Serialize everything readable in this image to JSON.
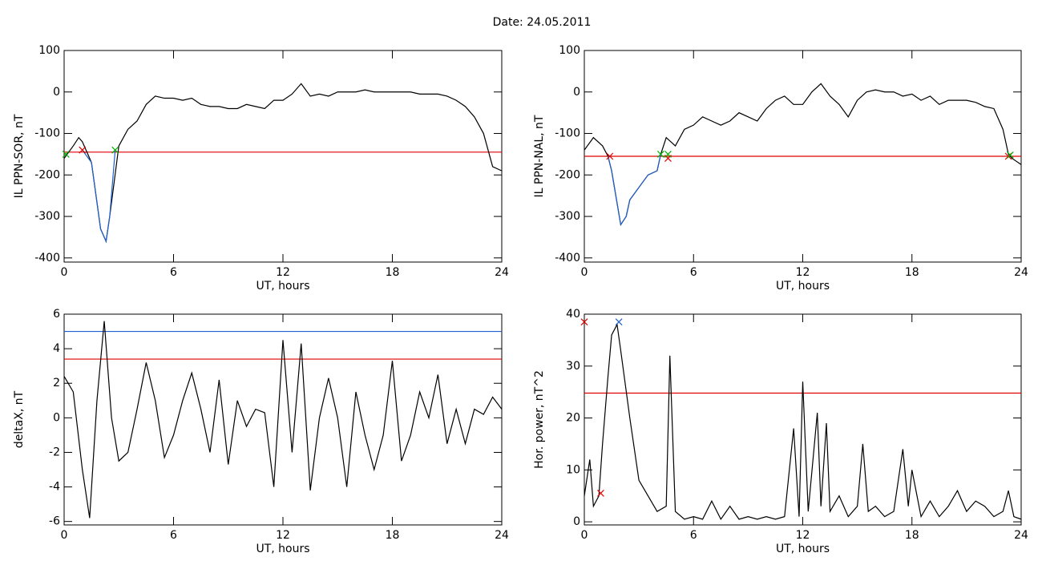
{
  "title": "Date:  24.05.2011",
  "chart_data": [
    {
      "type": "line",
      "ylabel": "IL PPN-SOR, nT",
      "xlabel": "UT, hours",
      "xlim": [
        0,
        24
      ],
      "xticks": [
        0,
        6,
        12,
        18,
        24
      ],
      "ylim": [
        -410,
        100
      ],
      "yticks": [
        -400,
        -300,
        -200,
        -100,
        0,
        100
      ],
      "series": [
        {
          "color": "#000000",
          "x": [
            0,
            0.5,
            0.8,
            1,
            1.5,
            2,
            2.3,
            2.5,
            3,
            3.5,
            4,
            4.5,
            5,
            5.5,
            6,
            6.5,
            7,
            7.5,
            8,
            8.5,
            9,
            9.5,
            10,
            10.5,
            11,
            11.5,
            12,
            12.5,
            13,
            13.5,
            14,
            14.5,
            15,
            15.5,
            16,
            16.5,
            17,
            17.5,
            18,
            18.5,
            19,
            19.5,
            20,
            20.5,
            21,
            21.5,
            22,
            22.5,
            23,
            23.5,
            24
          ],
          "values": [
            -160,
            -130,
            -110,
            -120,
            -170,
            -330,
            -360,
            -300,
            -130,
            -90,
            -70,
            -30,
            -10,
            -15,
            -15,
            -20,
            -15,
            -30,
            -35,
            -35,
            -40,
            -40,
            -30,
            -35,
            -40,
            -20,
            -20,
            -5,
            20,
            -10,
            -5,
            -10,
            0,
            0,
            0,
            5,
            0,
            0,
            0,
            0,
            0,
            -5,
            -5,
            -5,
            -10,
            -20,
            -35,
            -60,
            -100,
            -180,
            -190
          ]
        },
        {
          "color": "#1f5fd0",
          "x": [
            1,
            1.5,
            2,
            2.3,
            2.5,
            2.8
          ],
          "values": [
            -140,
            -170,
            -330,
            -360,
            -300,
            -140
          ]
        }
      ],
      "hlines": [
        {
          "value": -145,
          "color": "#e00000"
        }
      ],
      "markers": [
        {
          "x": 0.1,
          "y": -150,
          "color": "#00b000"
        },
        {
          "x": 1.0,
          "y": -140,
          "color": "#e00000"
        },
        {
          "x": 2.8,
          "y": -140,
          "color": "#00b000"
        }
      ]
    },
    {
      "type": "line",
      "ylabel": "IL PPN-NAL, nT",
      "xlabel": "UT, hours",
      "xlim": [
        0,
        24
      ],
      "xticks": [
        0,
        6,
        12,
        18,
        24
      ],
      "ylim": [
        -410,
        100
      ],
      "yticks": [
        -400,
        -300,
        -200,
        -100,
        0,
        100
      ],
      "series": [
        {
          "color": "#000000",
          "x": [
            0,
            0.5,
            1,
            1.3,
            1.5,
            2,
            2.3,
            2.5,
            3,
            3.5,
            4,
            4.2,
            4.5,
            5,
            5.5,
            6,
            6.5,
            7,
            7.5,
            8,
            8.5,
            9,
            9.5,
            10,
            10.5,
            11,
            11.5,
            12,
            12.5,
            13,
            13.5,
            14,
            14.5,
            15,
            15.5,
            16,
            16.5,
            17,
            17.5,
            18,
            18.5,
            19,
            19.5,
            20,
            20.5,
            21,
            21.5,
            22,
            22.5,
            23,
            23.3,
            23.5,
            24
          ],
          "values": [
            -140,
            -110,
            -130,
            -155,
            -190,
            -320,
            -300,
            -260,
            -230,
            -200,
            -190,
            -150,
            -110,
            -130,
            -90,
            -80,
            -60,
            -70,
            -80,
            -70,
            -50,
            -60,
            -70,
            -40,
            -20,
            -10,
            -30,
            -30,
            0,
            20,
            -10,
            -30,
            -60,
            -20,
            0,
            5,
            0,
            0,
            -10,
            -5,
            -20,
            -10,
            -30,
            -20,
            -20,
            -20,
            -25,
            -35,
            -40,
            -90,
            -150,
            -160,
            -175
          ]
        },
        {
          "color": "#1f5fd0",
          "x": [
            1.3,
            1.5,
            2,
            2.3,
            2.5,
            3,
            3.5,
            4,
            4.2
          ],
          "values": [
            -155,
            -190,
            -320,
            -300,
            -260,
            -230,
            -200,
            -190,
            -150
          ]
        }
      ],
      "hlines": [
        {
          "value": -155,
          "color": "#e00000"
        }
      ],
      "markers": [
        {
          "x": 1.4,
          "y": -155,
          "color": "#e00000"
        },
        {
          "x": 4.2,
          "y": -150,
          "color": "#00b000"
        },
        {
          "x": 4.6,
          "y": -160,
          "color": "#e00000"
        },
        {
          "x": 4.6,
          "y": -150,
          "color": "#00b000"
        },
        {
          "x": 23.3,
          "y": -155,
          "color": "#e00000"
        },
        {
          "x": 23.4,
          "y": -152,
          "color": "#00b000"
        }
      ]
    },
    {
      "type": "line",
      "ylabel": "deltaX, nT",
      "xlabel": "UT, hours",
      "xlim": [
        0,
        24
      ],
      "xticks": [
        0,
        6,
        12,
        18,
        24
      ],
      "ylim": [
        -6.2,
        6
      ],
      "yticks": [
        -6,
        -4,
        -2,
        0,
        2,
        4,
        6
      ],
      "series": [
        {
          "color": "#000000",
          "x": [
            0,
            0.5,
            1,
            1.4,
            1.8,
            2.2,
            2.6,
            3,
            3.5,
            4,
            4.5,
            5,
            5.5,
            6,
            6.5,
            7,
            7.5,
            8,
            8.5,
            9,
            9.5,
            10,
            10.5,
            11,
            11.5,
            12,
            12.5,
            13,
            13.5,
            14,
            14.5,
            15,
            15.5,
            16,
            16.5,
            17,
            17.5,
            18,
            18.5,
            19,
            19.5,
            20,
            20.5,
            21,
            21.5,
            22,
            22.5,
            23,
            23.5,
            24
          ],
          "values": [
            2.4,
            1.5,
            -3,
            -5.8,
            1,
            5.6,
            0,
            -2.5,
            -2,
            0.5,
            3.2,
            1,
            -2.3,
            -1,
            1,
            2.6,
            0.5,
            -2,
            2.2,
            -2.7,
            1,
            -0.5,
            0.5,
            0.3,
            -4,
            4.5,
            -2,
            4.3,
            -4.2,
            0,
            2.3,
            0,
            -4,
            1.5,
            -1,
            -3,
            -1,
            3.3,
            -2.5,
            -1,
            1.5,
            0,
            2.5,
            -1.5,
            0.5,
            -1.5,
            0.5,
            0.2,
            1.2,
            0.5
          ]
        }
      ],
      "hlines": [
        {
          "value": 3.4,
          "color": "#e00000"
        },
        {
          "value": 5.0,
          "color": "#1f5fd0"
        }
      ],
      "markers": []
    },
    {
      "type": "line",
      "ylabel": "Hor. power, nT^2",
      "xlabel": "UT, hours",
      "xlim": [
        0,
        24
      ],
      "xticks": [
        0,
        6,
        12,
        18,
        24
      ],
      "ylim": [
        -0.6,
        40
      ],
      "yticks": [
        0,
        10,
        20,
        30,
        40
      ],
      "series": [
        {
          "color": "#000000",
          "x": [
            0,
            0.3,
            0.5,
            0.8,
            1,
            1.3,
            1.5,
            1.8,
            2,
            2.5,
            3,
            3.5,
            4,
            4.5,
            4.7,
            5,
            5.5,
            6,
            6.5,
            7,
            7.5,
            8,
            8.5,
            9,
            9.5,
            10,
            10.5,
            11,
            11.5,
            11.8,
            12,
            12.3,
            12.8,
            13,
            13.3,
            13.5,
            14,
            14.5,
            15,
            15.3,
            15.6,
            16,
            16.5,
            17,
            17.5,
            17.8,
            18,
            18.5,
            19,
            19.5,
            20,
            20.5,
            21,
            21.5,
            22,
            22.5,
            23,
            23.3,
            23.6,
            24
          ],
          "values": [
            5,
            12,
            3,
            5,
            15,
            28,
            36,
            38,
            33,
            20,
            8,
            5,
            2,
            3,
            32,
            2,
            0.5,
            1,
            0.5,
            4,
            0.5,
            3,
            0.5,
            1,
            0.5,
            1,
            0.5,
            1,
            18,
            1,
            27,
            2,
            21,
            3,
            19,
            2,
            5,
            1,
            3,
            15,
            2,
            3,
            1,
            2,
            14,
            3,
            10,
            1,
            4,
            1,
            3,
            6,
            2,
            4,
            3,
            1,
            2,
            6,
            1,
            0.5
          ]
        }
      ],
      "hlines": [
        {
          "value": 24.8,
          "color": "#e00000"
        }
      ],
      "markers": [
        {
          "x": 0.9,
          "y": 5.5,
          "color": "#e00000"
        },
        {
          "x": 1.9,
          "y": 38.5,
          "color": "#1f5fd0"
        },
        {
          "x": 0,
          "y": 38.5,
          "color": "#e00000"
        }
      ]
    }
  ]
}
